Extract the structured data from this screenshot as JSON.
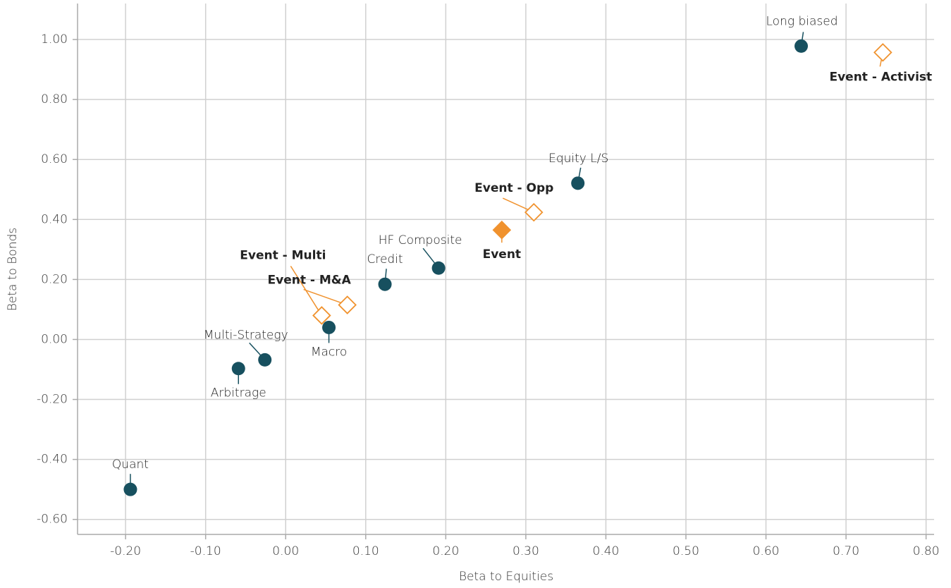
{
  "chart_data": {
    "type": "scatter",
    "x_label": "Beta to Equities",
    "y_label": "Beta to Bonds",
    "xlim": [
      -0.26,
      0.81
    ],
    "ylim": [
      -0.65,
      1.12
    ],
    "xticks": [
      {
        "value": -0.2,
        "label": "-0.20"
      },
      {
        "value": -0.1,
        "label": "-0.10"
      },
      {
        "value": 0,
        "label": "0.00"
      },
      {
        "value": 0.1,
        "label": "0.10"
      },
      {
        "value": 0.2,
        "label": "0.20"
      },
      {
        "value": 0.3,
        "label": "0.30"
      },
      {
        "value": 0.4,
        "label": "0.40"
      },
      {
        "value": 0.5,
        "label": "0.50"
      },
      {
        "value": 0.6,
        "label": "0.60"
      },
      {
        "value": 0.7,
        "label": "0.70"
      },
      {
        "value": 0.8,
        "label": "0.80"
      }
    ],
    "yticks": [
      {
        "value": -0.6,
        "label": "-0.60"
      },
      {
        "value": -0.4,
        "label": "-0.40"
      },
      {
        "value": -0.2,
        "label": "-0.20"
      },
      {
        "value": 0,
        "label": "0.00"
      },
      {
        "value": 0.2,
        "label": "0.20"
      },
      {
        "value": 0.4,
        "label": "0.40"
      },
      {
        "value": 0.6,
        "label": "0.60"
      },
      {
        "value": 0.8,
        "label": "0.80"
      },
      {
        "value": 1,
        "label": "1.00"
      }
    ],
    "grid": true,
    "series": [
      {
        "color": "#17505f",
        "marker": "circle",
        "bold": false,
        "labels": [
          "Long biased",
          "Equity L/S",
          "HF Composite",
          "Credit",
          "Macro",
          "Multi-Strategy",
          "Arbitrage",
          "Quant"
        ],
        "x": [
          0.644,
          0.365,
          0.191,
          0.124,
          0.054,
          -0.026,
          -0.059,
          -0.194
        ],
        "values": [
          0.978,
          0.521,
          0.238,
          0.184,
          0.04,
          -0.068,
          -0.097,
          -0.5
        ]
      },
      {
        "color": "#f0922e",
        "marker": "diamond-open",
        "bold": true,
        "labels": [
          "Event - Activist",
          "Event - Opp",
          "Event - M&A",
          "Event - Multi"
        ],
        "x": [
          0.746,
          0.31,
          0.077,
          0.045
        ],
        "values": [
          0.957,
          0.424,
          0.115,
          0.08
        ]
      },
      {
        "color": "#f0922e",
        "marker": "diamond",
        "bold": true,
        "labels": [
          "Event"
        ],
        "x": [
          0.27
        ],
        "values": [
          0.365
        ]
      }
    ]
  }
}
